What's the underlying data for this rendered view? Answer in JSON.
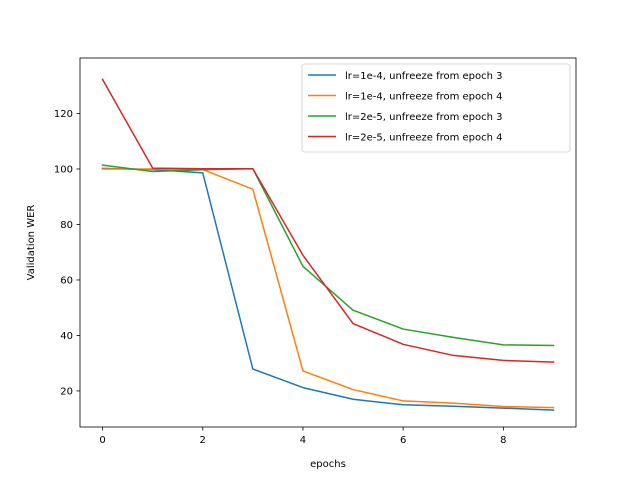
{
  "chart_data": {
    "type": "line",
    "title": "",
    "xlabel": "epochs",
    "ylabel": "Validation WER",
    "xlim": [
      -0.45,
      9.45
    ],
    "ylim": [
      7,
      140
    ],
    "xticks": [
      0,
      2,
      4,
      6,
      8
    ],
    "yticks": [
      20,
      40,
      60,
      80,
      100,
      120
    ],
    "grid": false,
    "legend_position": "top-right",
    "x": [
      0,
      1,
      2,
      3,
      4,
      5,
      6,
      7,
      8,
      9
    ],
    "series": [
      {
        "name": "lr=1e-4, unfreeze from epoch 3",
        "color": "#1f77b4",
        "x": [
          0,
          1,
          2,
          3,
          4,
          5,
          6,
          7,
          8,
          9
        ],
        "values": [
          100.2,
          99.8,
          98.6,
          27.9,
          21.2,
          17.0,
          15.0,
          14.5,
          13.8,
          13.1
        ]
      },
      {
        "name": "lr=1e-4, unfreeze from epoch 4",
        "color": "#ff7f0e",
        "x": [
          0,
          1,
          2,
          3,
          4,
          5,
          6,
          7,
          8,
          9
        ],
        "values": [
          100.0,
          100.0,
          99.8,
          92.7,
          27.2,
          20.5,
          16.4,
          15.6,
          14.4,
          14.0
        ]
      },
      {
        "name": "lr=2e-5, unfreeze from epoch 3",
        "color": "#2ca02c",
        "x": [
          0,
          1,
          1.5,
          2,
          3,
          4,
          5,
          6,
          7,
          8,
          9
        ],
        "values": [
          101.4,
          99.1,
          99.4,
          99.7,
          100.1,
          64.9,
          49.1,
          42.3,
          39.3,
          36.6,
          36.4
        ]
      },
      {
        "name": "lr=2e-5, unfreeze from epoch 4",
        "color": "#d62728",
        "x": [
          0,
          1,
          2,
          3,
          4,
          5,
          6,
          7,
          8,
          9
        ],
        "values": [
          132.3,
          100.3,
          100.1,
          100.1,
          68.9,
          44.3,
          36.8,
          32.8,
          31.0,
          30.4
        ]
      }
    ]
  }
}
